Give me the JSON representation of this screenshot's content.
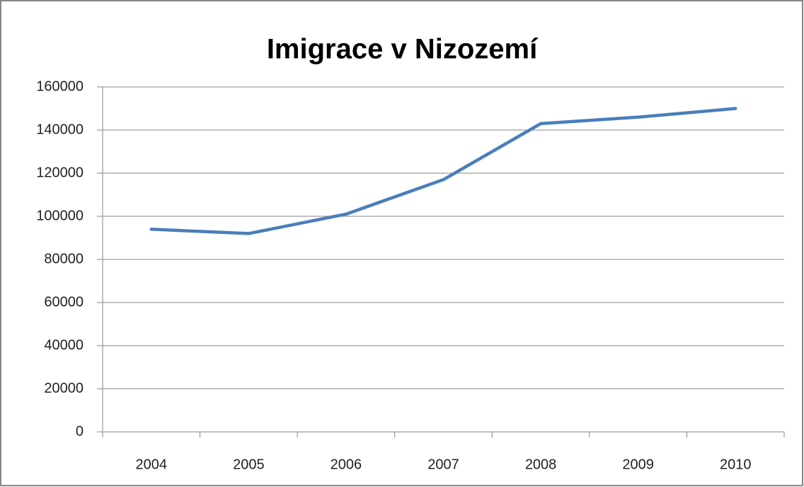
{
  "chart_data": {
    "type": "line",
    "title": "Imigrace v Nizozemí",
    "categories": [
      "2004",
      "2005",
      "2006",
      "2007",
      "2008",
      "2009",
      "2010"
    ],
    "series": [
      {
        "name": "Imigrace",
        "color": "#4a7ebb",
        "values": [
          94000,
          92000,
          101000,
          117000,
          143000,
          146000,
          150000
        ]
      }
    ],
    "ylim": [
      0,
      160000
    ],
    "yticks": [
      0,
      20000,
      40000,
      60000,
      80000,
      100000,
      120000,
      140000,
      160000
    ],
    "grid": true
  }
}
